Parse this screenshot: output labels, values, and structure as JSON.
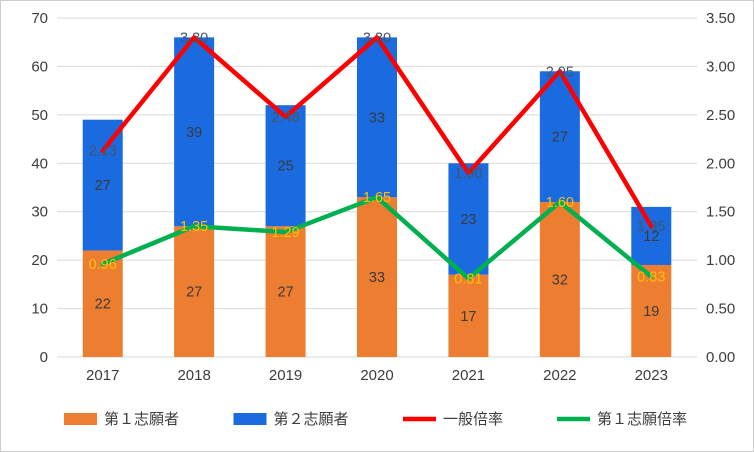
{
  "chart_data": {
    "type": "combo",
    "title": "",
    "categories": [
      "2017",
      "2018",
      "2019",
      "2020",
      "2021",
      "2022",
      "2023"
    ],
    "series": [
      {
        "id": "first-choice-applicants",
        "name": "第１志願者",
        "kind": "bar",
        "stack": "applicants",
        "axis": "left",
        "color": "#ED7D31",
        "values": [
          22,
          27,
          27,
          33,
          17,
          32,
          19
        ],
        "labels": [
          "22",
          "27",
          "27",
          "33",
          "17",
          "32",
          "19"
        ],
        "label_color": "#3b3b3b"
      },
      {
        "id": "second-choice-applicants",
        "name": "第２志願者",
        "kind": "bar",
        "stack": "applicants",
        "axis": "left",
        "color": "#1A6BE0",
        "values": [
          27,
          39,
          25,
          33,
          23,
          27,
          12
        ],
        "labels": [
          "27",
          "39",
          "25",
          "33",
          "23",
          "27",
          "12"
        ],
        "label_color": "#3b3b3b"
      },
      {
        "id": "general-ratio",
        "name": "一般倍率",
        "kind": "line",
        "axis": "right",
        "color": "#FF0000",
        "values": [
          2.13,
          3.3,
          2.48,
          3.3,
          1.9,
          2.95,
          1.35
        ],
        "labels": [
          "2.13",
          "3.30",
          "2.48",
          "3.30",
          "1.90",
          "2.95",
          "1.35"
        ],
        "label_color": "#44546A"
      },
      {
        "id": "first-choice-ratio",
        "name": "第１志願倍率",
        "kind": "line",
        "axis": "right",
        "color": "#00B050",
        "values": [
          0.96,
          1.35,
          1.29,
          1.65,
          0.81,
          1.6,
          0.83
        ],
        "labels": [
          "0.96",
          "1.35",
          "1.29",
          "1.65",
          "0.81",
          "1.60",
          "0.83"
        ],
        "label_color": "#FFC000"
      }
    ],
    "left_axis": {
      "min": 0,
      "max": 70,
      "step": 10,
      "tick_labels": [
        "0",
        "10",
        "20",
        "30",
        "40",
        "50",
        "60",
        "70"
      ]
    },
    "right_axis": {
      "min": 0,
      "max": 3.5,
      "step": 0.5,
      "tick_labels": [
        "0.00",
        "0.50",
        "1.00",
        "1.50",
        "2.00",
        "2.50",
        "3.00",
        "3.50"
      ]
    },
    "grid": true,
    "gridline_color": "#D9D9D9",
    "axis_text_color": "#3d3d3d",
    "legend_position": "bottom"
  }
}
